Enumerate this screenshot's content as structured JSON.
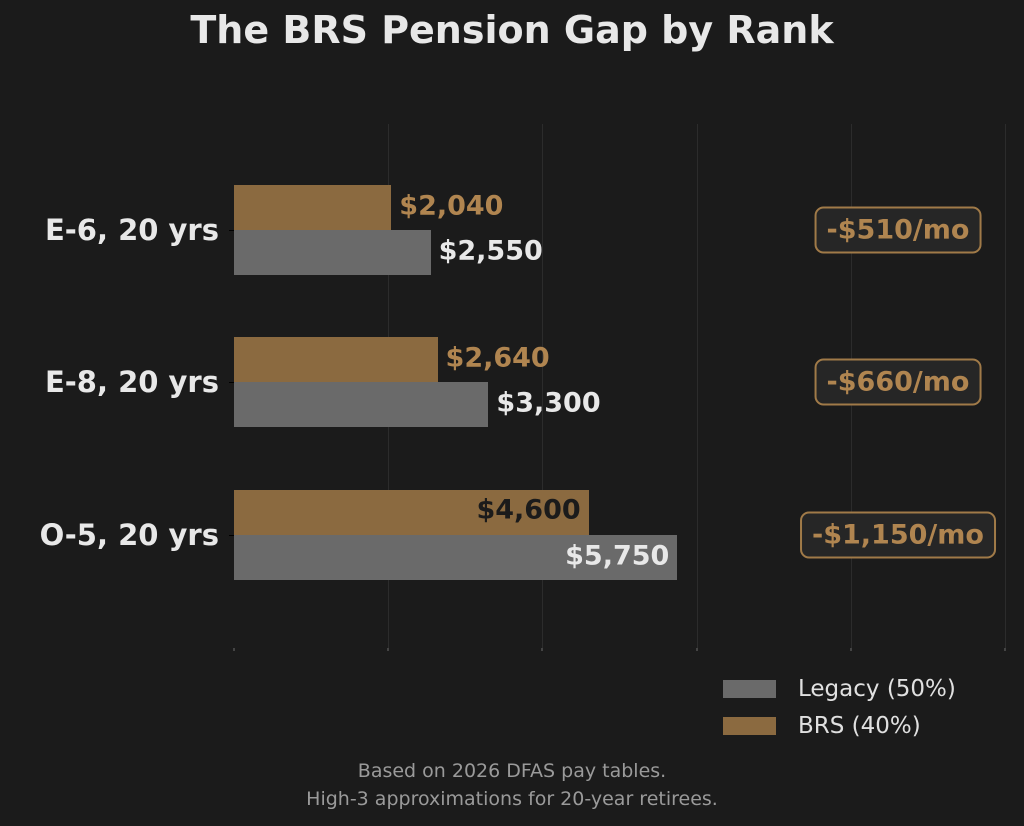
{
  "chart_data": {
    "type": "bar",
    "orientation": "horizontal",
    "title": "The BRS Pension Gap by Rank",
    "categories": [
      "E-6, 20 yrs",
      "E-8, 20 yrs",
      "O-5, 20 yrs"
    ],
    "series": [
      {
        "name": "BRS (40%)",
        "color": "#8b6a40",
        "values": [
          2040,
          2640,
          4600
        ],
        "labels": [
          "$2,040",
          "$2,640",
          "$4,600"
        ]
      },
      {
        "name": "Legacy (50%)",
        "color": "#6a6a6a",
        "values": [
          2550,
          3300,
          5750
        ],
        "labels": [
          "$2,550",
          "$3,300",
          "$5,750"
        ]
      }
    ],
    "annotations": [
      "-$510/mo",
      "-$660/mo",
      "-$1,150/mo"
    ],
    "xlabel": "",
    "ylabel": "",
    "xlim": [
      0,
      10000
    ],
    "grid": true,
    "x_tick_labels_visible": false,
    "legend_position": "lower right",
    "footnote": [
      "Based on 2026 DFAS pay tables.",
      "High-3 approximations for 20-year retirees."
    ]
  },
  "title": "The BRS Pension Gap by Rank",
  "legend": [
    {
      "label": "Legacy (50%)",
      "color": "#6a6a6a"
    },
    {
      "label": "BRS (40%)",
      "color": "#8b6a40"
    }
  ],
  "footnote": {
    "line1": "Based on 2026 DFAS pay tables.",
    "line2": "High-3 approximations for 20-year retirees."
  }
}
